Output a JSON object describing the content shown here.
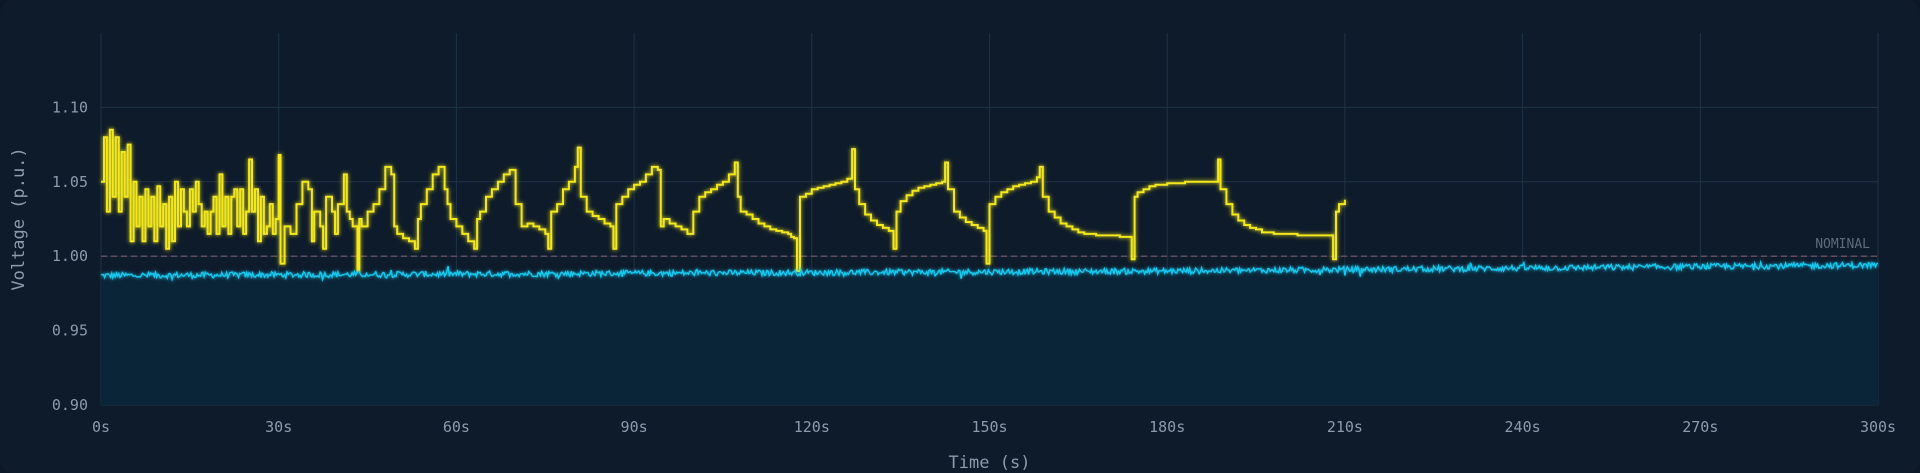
{
  "chart_data": {
    "type": "line",
    "title": "",
    "xlabel": "Time (s)",
    "ylabel": "Voltage (p.u.)",
    "xlim": [
      0,
      300
    ],
    "ylim": [
      0.9,
      1.15
    ],
    "x_ticks": [
      0,
      30,
      60,
      90,
      120,
      150,
      180,
      210,
      240,
      270,
      300
    ],
    "x_tick_labels": [
      "0s",
      "30s",
      "60s",
      "90s",
      "120s",
      "150s",
      "180s",
      "210s",
      "240s",
      "270s",
      "300s"
    ],
    "y_ticks": [
      0.9,
      0.95,
      1.0,
      1.05,
      1.1
    ],
    "y_tick_labels": [
      "0.90",
      "0.95",
      "1.00",
      "1.05",
      "1.10"
    ],
    "grid": true,
    "legend": "none",
    "reference_line": {
      "value": 1.0,
      "label": "NOMINAL",
      "color": "#7a5a6a"
    },
    "colors": {
      "background": "#0e1b2b",
      "grid": "#1e3347",
      "fill": "#0b2538"
    },
    "series": [
      {
        "color": "#f2e81e",
        "style": "step",
        "points": [
          [
            0,
            1.05
          ],
          [
            0.5,
            1.08
          ],
          [
            1,
            1.03
          ],
          [
            1.5,
            1.085
          ],
          [
            2,
            1.04
          ],
          [
            2.5,
            1.08
          ],
          [
            3,
            1.03
          ],
          [
            3.5,
            1.07
          ],
          [
            4,
            1.04
          ],
          [
            4.5,
            1.075
          ],
          [
            5,
            1.01
          ],
          [
            5.5,
            1.05
          ],
          [
            6,
            1.02
          ],
          [
            6.5,
            1.04
          ],
          [
            7,
            1.01
          ],
          [
            7.5,
            1.045
          ],
          [
            8,
            1.02
          ],
          [
            8.5,
            1.04
          ],
          [
            9,
            1.01
          ],
          [
            9.5,
            1.047
          ],
          [
            10,
            1.02
          ],
          [
            10.5,
            1.035
          ],
          [
            11,
            1.005
          ],
          [
            11.5,
            1.04
          ],
          [
            12,
            1.01
          ],
          [
            12.5,
            1.05
          ],
          [
            13,
            1.02
          ],
          [
            13.5,
            1.045
          ],
          [
            14,
            1.03
          ],
          [
            14.5,
            1.02
          ],
          [
            15,
            1.045
          ],
          [
            15.5,
            1.03
          ],
          [
            16,
            1.05
          ],
          [
            16.5,
            1.035
          ],
          [
            17,
            1.02
          ],
          [
            17.5,
            1.03
          ],
          [
            18,
            1.015
          ],
          [
            18.5,
            1.03
          ],
          [
            19,
            1.04
          ],
          [
            19.5,
            1.015
          ],
          [
            20,
            1.055
          ],
          [
            20.5,
            1.02
          ],
          [
            21,
            1.04
          ],
          [
            21.5,
            1.015
          ],
          [
            22,
            1.04
          ],
          [
            22.5,
            1.045
          ],
          [
            23,
            1.02
          ],
          [
            23.5,
            1.045
          ],
          [
            24,
            1.015
          ],
          [
            24.5,
            1.03
          ],
          [
            25,
            1.065
          ],
          [
            25.5,
            1.03
          ],
          [
            26,
            1.045
          ],
          [
            26.5,
            1.01
          ],
          [
            27,
            1.04
          ],
          [
            27.5,
            1.015
          ],
          [
            28,
            1.02
          ],
          [
            28.5,
            1.035
          ],
          [
            29,
            1.015
          ],
          [
            29.5,
            1.025
          ],
          [
            30,
            1.068
          ],
          [
            30.3,
            0.995
          ],
          [
            31,
            1.02
          ],
          [
            32,
            1.015
          ],
          [
            33,
            1.035
          ],
          [
            34,
            1.05
          ],
          [
            35,
            1.045
          ],
          [
            35.6,
            1.01
          ],
          [
            36,
            1.03
          ],
          [
            37,
            1.02
          ],
          [
            37.5,
            1.005
          ],
          [
            38,
            1.04
          ],
          [
            39,
            1.03
          ],
          [
            39.5,
            1.015
          ],
          [
            40,
            1.035
          ],
          [
            41,
            1.055
          ],
          [
            41.5,
            1.03
          ],
          [
            42,
            1.025
          ],
          [
            42.5,
            1.02
          ],
          [
            43,
            1.02
          ],
          [
            43.3,
            0.99
          ],
          [
            43.6,
            1.025
          ],
          [
            44,
            1.02
          ],
          [
            45,
            1.03
          ],
          [
            46,
            1.035
          ],
          [
            47,
            1.045
          ],
          [
            48,
            1.06
          ],
          [
            49,
            1.055
          ],
          [
            49.5,
            1.02
          ],
          [
            50,
            1.015
          ],
          [
            51,
            1.012
          ],
          [
            52,
            1.01
          ],
          [
            53,
            1.005
          ],
          [
            53.5,
            1.025
          ],
          [
            54,
            1.035
          ],
          [
            55,
            1.045
          ],
          [
            56,
            1.055
          ],
          [
            57,
            1.06
          ],
          [
            58,
            1.045
          ],
          [
            58.5,
            1.035
          ],
          [
            59,
            1.025
          ],
          [
            60,
            1.02
          ],
          [
            61,
            1.015
          ],
          [
            62,
            1.01
          ],
          [
            63,
            1.005
          ],
          [
            63.5,
            1.025
          ],
          [
            64,
            1.03
          ],
          [
            65,
            1.04
          ],
          [
            66,
            1.045
          ],
          [
            67,
            1.05
          ],
          [
            68,
            1.055
          ],
          [
            69,
            1.058
          ],
          [
            70,
            1.035
          ],
          [
            71,
            1.02
          ],
          [
            72,
            1.022
          ],
          [
            73,
            1.02
          ],
          [
            74,
            1.018
          ],
          [
            75,
            1.015
          ],
          [
            75.5,
            1.005
          ],
          [
            76,
            1.03
          ],
          [
            77,
            1.035
          ],
          [
            78,
            1.045
          ],
          [
            79,
            1.05
          ],
          [
            80,
            1.06
          ],
          [
            80.5,
            1.073
          ],
          [
            81,
            1.04
          ],
          [
            82,
            1.03
          ],
          [
            83,
            1.027
          ],
          [
            84,
            1.025
          ],
          [
            85,
            1.022
          ],
          [
            86,
            1.02
          ],
          [
            86.5,
            1.005
          ],
          [
            87,
            1.035
          ],
          [
            88,
            1.04
          ],
          [
            89,
            1.045
          ],
          [
            90,
            1.048
          ],
          [
            91,
            1.05
          ],
          [
            92,
            1.055
          ],
          [
            93,
            1.06
          ],
          [
            94,
            1.058
          ],
          [
            94.5,
            1.02
          ],
          [
            95,
            1.025
          ],
          [
            96,
            1.022
          ],
          [
            97,
            1.02
          ],
          [
            98,
            1.018
          ],
          [
            99,
            1.015
          ],
          [
            100,
            1.03
          ],
          [
            101,
            1.04
          ],
          [
            102,
            1.043
          ],
          [
            103,
            1.045
          ],
          [
            104,
            1.048
          ],
          [
            105,
            1.05
          ],
          [
            106,
            1.055
          ],
          [
            107,
            1.063
          ],
          [
            107.5,
            1.04
          ],
          [
            108,
            1.03
          ],
          [
            109,
            1.028
          ],
          [
            110,
            1.025
          ],
          [
            111,
            1.022
          ],
          [
            112,
            1.02
          ],
          [
            113,
            1.018
          ],
          [
            114,
            1.017
          ],
          [
            115,
            1.016
          ],
          [
            116,
            1.015
          ],
          [
            116.5,
            1.013
          ],
          [
            117,
            1.012
          ],
          [
            117.5,
            0.99
          ],
          [
            118,
            1.04
          ],
          [
            119,
            1.042
          ],
          [
            120,
            1.045
          ],
          [
            121,
            1.046
          ],
          [
            122,
            1.047
          ],
          [
            123,
            1.048
          ],
          [
            124,
            1.049
          ],
          [
            125,
            1.05
          ],
          [
            126,
            1.052
          ],
          [
            126.8,
            1.072
          ],
          [
            127.3,
            1.045
          ],
          [
            128,
            1.035
          ],
          [
            129,
            1.028
          ],
          [
            130,
            1.024
          ],
          [
            131,
            1.021
          ],
          [
            132,
            1.019
          ],
          [
            133,
            1.017
          ],
          [
            133.8,
            1.005
          ],
          [
            134.3,
            1.03
          ],
          [
            135,
            1.037
          ],
          [
            136,
            1.041
          ],
          [
            137,
            1.044
          ],
          [
            138,
            1.046
          ],
          [
            139,
            1.047
          ],
          [
            140,
            1.048
          ],
          [
            141,
            1.049
          ],
          [
            142,
            1.05
          ],
          [
            142.5,
            1.063
          ],
          [
            143,
            1.045
          ],
          [
            144,
            1.03
          ],
          [
            145,
            1.026
          ],
          [
            146,
            1.023
          ],
          [
            147,
            1.021
          ],
          [
            148,
            1.019
          ],
          [
            149,
            1.017
          ],
          [
            149.5,
            0.995
          ],
          [
            150,
            1.035
          ],
          [
            151,
            1.04
          ],
          [
            152,
            1.043
          ],
          [
            153,
            1.045
          ],
          [
            154,
            1.047
          ],
          [
            155,
            1.048
          ],
          [
            156,
            1.049
          ],
          [
            157,
            1.05
          ],
          [
            158,
            1.053
          ],
          [
            158.5,
            1.06
          ],
          [
            159,
            1.04
          ],
          [
            160,
            1.03
          ],
          [
            161,
            1.026
          ],
          [
            162,
            1.022
          ],
          [
            163,
            1.02
          ],
          [
            164,
            1.018
          ],
          [
            165,
            1.016
          ],
          [
            166,
            1.015
          ],
          [
            167,
            1.015
          ],
          [
            168,
            1.014
          ],
          [
            169,
            1.014
          ],
          [
            170,
            1.014
          ],
          [
            171,
            1.014
          ],
          [
            172,
            1.013
          ],
          [
            173,
            1.013
          ],
          [
            173.5,
            1.013
          ],
          [
            174,
            0.998
          ],
          [
            174.5,
            1.04
          ],
          [
            175,
            1.043
          ],
          [
            176,
            1.045
          ],
          [
            177,
            1.047
          ],
          [
            178,
            1.048
          ],
          [
            180,
            1.049
          ],
          [
            183,
            1.05
          ],
          [
            186,
            1.05
          ],
          [
            188,
            1.05
          ],
          [
            188.6,
            1.065
          ],
          [
            189,
            1.045
          ],
          [
            190,
            1.035
          ],
          [
            191,
            1.028
          ],
          [
            192,
            1.024
          ],
          [
            193,
            1.021
          ],
          [
            194,
            1.019
          ],
          [
            195,
            1.018
          ],
          [
            196,
            1.016
          ],
          [
            198,
            1.015
          ],
          [
            200,
            1.015
          ],
          [
            202,
            1.014
          ],
          [
            204,
            1.014
          ],
          [
            206,
            1.014
          ],
          [
            207.5,
            1.014
          ],
          [
            208,
            0.998
          ],
          [
            208.5,
            1.03
          ],
          [
            209,
            1.035
          ],
          [
            210,
            1.038
          ]
        ]
      },
      {
        "color": "#18c8ee",
        "style": "noisy",
        "trend": [
          [
            0,
            0.987
          ],
          [
            60,
            0.988
          ],
          [
            120,
            0.989
          ],
          [
            180,
            0.99
          ],
          [
            240,
            0.992
          ],
          [
            300,
            0.994
          ]
        ],
        "noise_amplitude": 0.002
      }
    ]
  }
}
